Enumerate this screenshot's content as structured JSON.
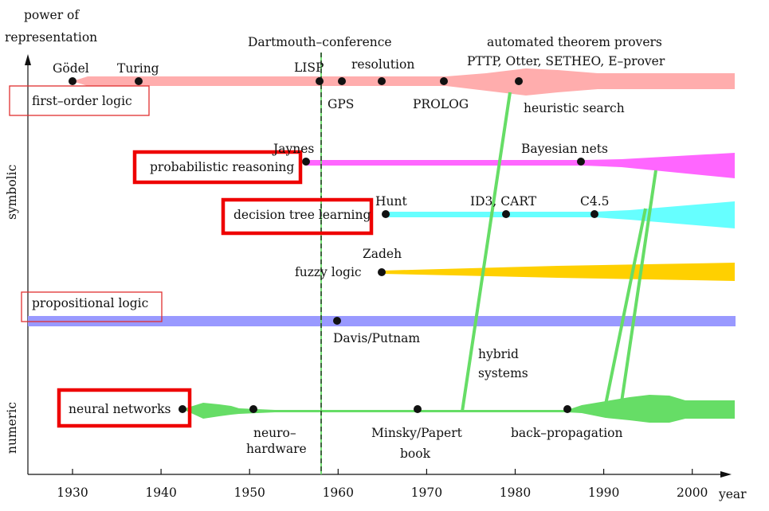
{
  "axes": {
    "y_title_line1": "power of",
    "y_title_line2": "representation",
    "y_symbolic": "symbolic",
    "y_numeric": "numeric",
    "x_unit": "year",
    "x_ticks": [
      "1930",
      "1940",
      "1950",
      "1960",
      "1970",
      "1980",
      "1990",
      "2000"
    ]
  },
  "annotations": {
    "dartmouth": "Dartmouth–conference",
    "atp_title": "automated theorem provers",
    "hybrid_line1": "hybrid",
    "hybrid_line2": "systems"
  },
  "streams": {
    "fol": {
      "label": "first–order logic",
      "color": "#ffadad",
      "events": [
        "Gödel",
        "Turing",
        "LISP",
        "GPS",
        "resolution",
        "PROLOG",
        "PTTP, Otter, SETHEO, E–prover",
        "heuristic search"
      ]
    },
    "prob": {
      "label": "probabilistic reasoning",
      "color": "#ff66ff",
      "events": [
        "Jaynes",
        "Bayesian nets"
      ]
    },
    "dtree": {
      "label": "decision tree learning",
      "color": "#66ffff",
      "events": [
        "Hunt",
        "ID3, CART",
        "C4.5"
      ]
    },
    "fuzzy": {
      "label": "fuzzy logic",
      "color": "#ffd000",
      "events": [
        "Zadeh"
      ]
    },
    "prop": {
      "label": "propositional logic",
      "color": "#9999ff",
      "events": [
        "Davis/Putnam"
      ]
    },
    "nn": {
      "label": "neural networks",
      "color": "#66dd66",
      "events": [
        "neuro–",
        "hardware",
        "Minsky/Papert",
        "book",
        "back–propagation"
      ]
    }
  },
  "colors": {
    "highlight_thick": "#ee0000",
    "highlight_thin": "#e03030",
    "hybrid_line": "#66dd66",
    "dartmouth_line": "#66dd66"
  }
}
